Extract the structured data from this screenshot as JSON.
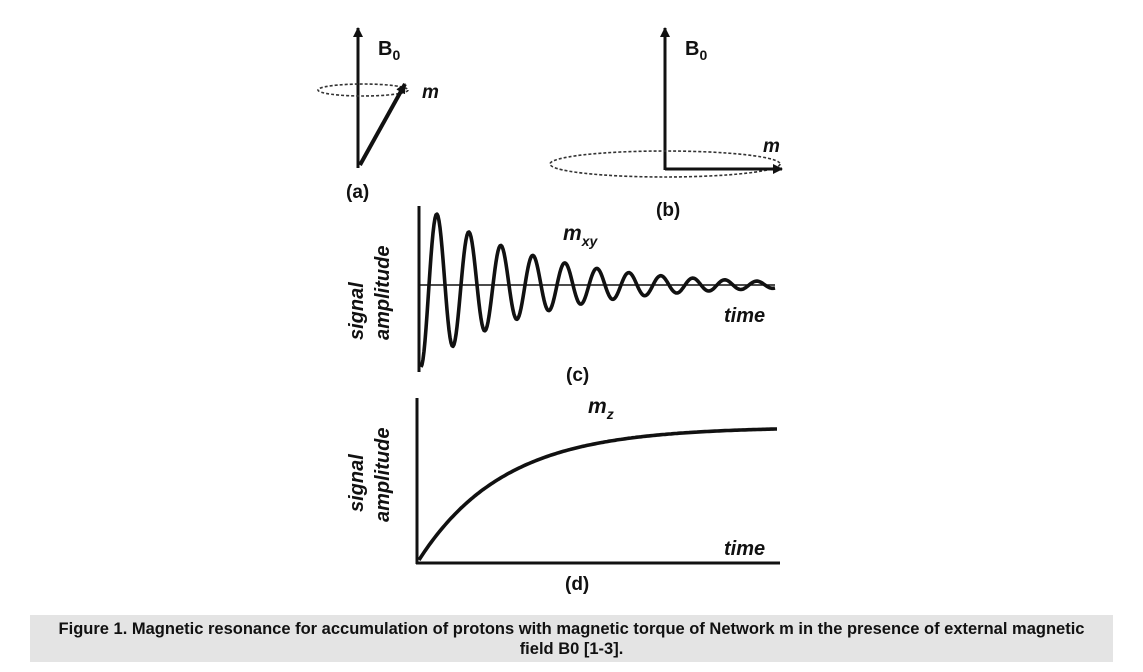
{
  "panels": {
    "a": {
      "label": "(a)",
      "field_label": "B",
      "field_sub": "0",
      "vector_label": "m"
    },
    "b": {
      "label": "(b)",
      "field_label": "B",
      "field_sub": "0",
      "vector_label": "m"
    },
    "c": {
      "label": "(c)",
      "ylabel_1": "signal",
      "ylabel_2": "amplitude",
      "xlabel": "time",
      "curve_label": "m",
      "curve_sub": "xy"
    },
    "d": {
      "label": "(d)",
      "ylabel_1": "signal",
      "ylabel_2": "amplitude",
      "xlabel": "time",
      "curve_label": "m",
      "curve_sub": "z"
    }
  },
  "caption": "Figure 1. Magnetic resonance for accumulation of protons with magnetic torque of Network m in the presence of external magnetic field B0 [1-3]."
}
